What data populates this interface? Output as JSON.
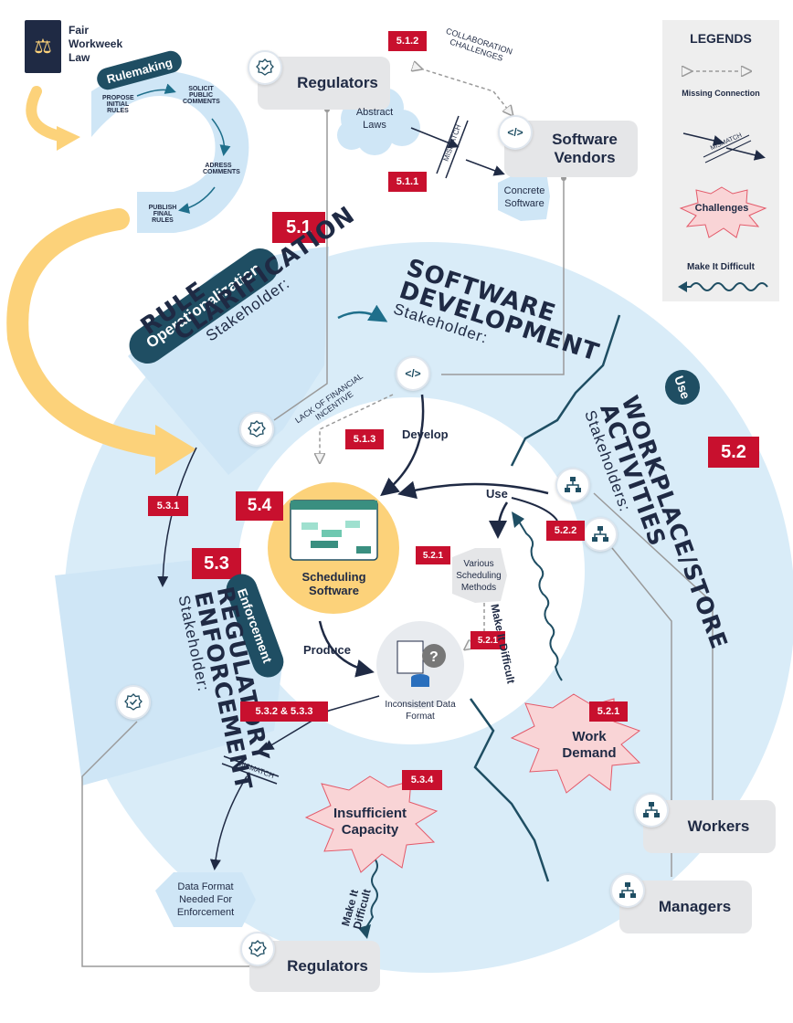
{
  "logo": {
    "line1": "Fair",
    "line2": "Workweek",
    "line3": "Law"
  },
  "rulemaking": {
    "pill": "Rulemaking",
    "steps": [
      "PROPOSE INITIAL RULES",
      "SOLICIT PUBLIC COMMENTS",
      "ADRESS COMMENTS",
      "PUBLISH FINAL RULES"
    ]
  },
  "regulators_top": "Regulators",
  "abstract_laws": "Abstract Laws",
  "software_vendors": "Software Vendors",
  "concrete_software": "Concrete Software",
  "collab_challenges": "COLLABORATION CHALLENGES",
  "mismatch": "MISMATCH",
  "labels": {
    "l512": "5.1.2",
    "l511": "5.1.1",
    "l51": "5.1",
    "l513": "5.1.3",
    "l52": "5.2",
    "l522": "5.2.2",
    "l521a": "5.2.1",
    "l521b": "5.2.1",
    "l521c": "5.2.1",
    "l54": "5.4",
    "l53": "5.3",
    "l531": "5.3.1",
    "l532": "5.3.2 & 5.3.3",
    "l534": "5.3.4"
  },
  "legend": {
    "title": "LEGENDS",
    "missing": "Missing Connection",
    "mismatch": "MISMATCH",
    "challenges": "Challenges",
    "difficult": "Make It Difficult"
  },
  "operationalization": "Operationalization",
  "rule_clarification": {
    "line1": "RULE",
    "line2": "CLARIFICATION",
    "stakeholder": "Stakeholder:"
  },
  "software_development": {
    "line1": "SOFTWARE",
    "line2": "DEVELOPMENT",
    "stakeholder": "Stakeholder:"
  },
  "use_pill": "Use",
  "workplace": {
    "line1": "WORKPLACE/STORE",
    "line2": "ACTIVITIES",
    "stakeholder": "Stakeholders:"
  },
  "enforcement_pill": "Enforcement",
  "regulatory_enforcement": {
    "line1": "REGULATORY",
    "line2": "ENFORCEMENT",
    "stakeholder": "Stakeholder:"
  },
  "lack_financial": "LACK OF FINANCIAL INCENTIVE",
  "develop": "Develop",
  "use": "Use",
  "produce": "Produce",
  "scheduling_software": "Scheduling Software",
  "various_methods": "Various Scheduling Methods",
  "inconsistent_format": "Inconsistent Data Format",
  "make_it_difficult": "Make It Difficult",
  "work_demand": "Work Demand",
  "insufficient_capacity": "Insufficient Capacity",
  "data_format_needed": "Data Format Needed For Enforcement",
  "regulators_bottom": "Regulators",
  "workers": "Workers",
  "managers": "Managers",
  "colors": {
    "navy": "#1f2a44",
    "teal": "#1f4e63",
    "light_blue": "#d9ecf8",
    "red": "#c8102e",
    "yellow": "#fcd27a",
    "pink": "#f9d4d6"
  }
}
